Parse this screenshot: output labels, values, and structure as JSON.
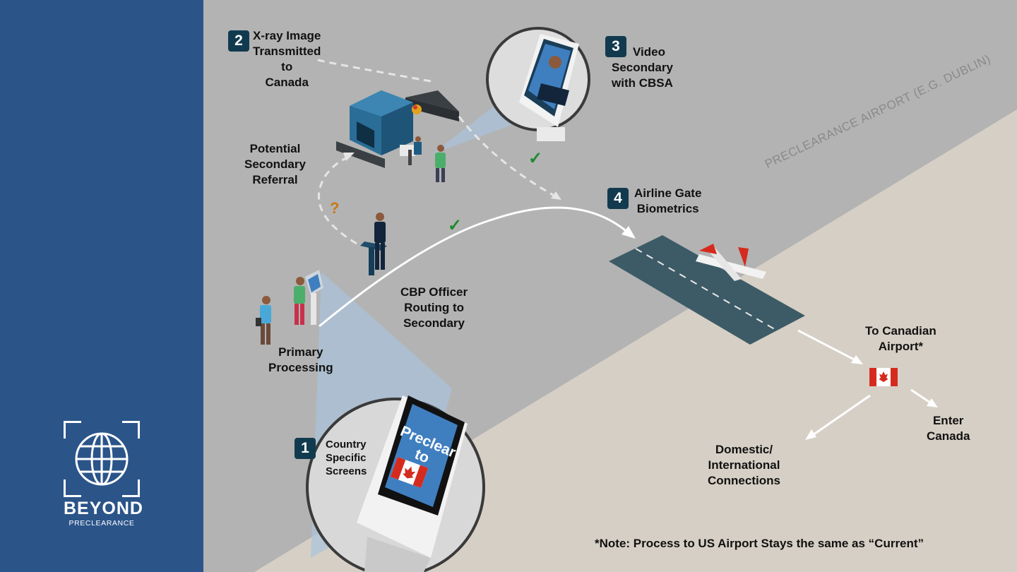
{
  "logo": {
    "title": "BEYOND",
    "subtitle": "PRECLEARANCE",
    "icon": "globe-icon"
  },
  "airport_label": "PRECLEARANCE AIRPORT (E.G. DUBLIN)",
  "steps": [
    {
      "number": "1",
      "lines": [
        "Country",
        "Specific",
        "Screens"
      ]
    },
    {
      "number": "2",
      "lines": [
        "X-ray Image",
        "Transmitted",
        "to",
        "Canada"
      ]
    },
    {
      "number": "3",
      "lines": [
        "Video",
        "Secondary",
        "with CBSA"
      ]
    },
    {
      "number": "4",
      "lines": [
        "Airline Gate",
        "Biometrics"
      ]
    }
  ],
  "labels": {
    "potential_secondary": [
      "Potential",
      "Secondary",
      "Referral"
    ],
    "cbp_officer": [
      "CBP Officer",
      "Routing to",
      "Secondary"
    ],
    "primary": [
      "Primary",
      "Processing"
    ],
    "to_canadian": [
      "To Canadian",
      "Airport*"
    ],
    "enter_canada": [
      "Enter",
      "Canada"
    ],
    "connections": [
      "Domestic/",
      "International",
      "Connections"
    ],
    "question": "?",
    "check": "✓"
  },
  "kiosk_screen": [
    "Preclear",
    "to"
  ],
  "note": "*Note: Process to US Airport Stays the same as “Current”",
  "colors": {
    "sidebar": "#2b5489",
    "floor": "#b3b3b3",
    "ground": "#d6cfc5",
    "badge": "#123a4f",
    "check": "#1f8a2c",
    "question": "#c9791a",
    "flag_red": "#d52b1e",
    "runway": "#3d5b66"
  }
}
